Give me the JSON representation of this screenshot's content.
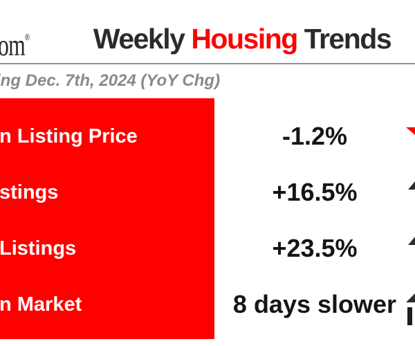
{
  "header": {
    "logo_visible": "om",
    "registered_mark": "®",
    "title_part1": "Weekly ",
    "title_part2": "Housing",
    "title_part3": " Trends"
  },
  "subtitle": "ing Dec. 7th, 2024 (YoY Chg)",
  "colors": {
    "accent_red": "#fe0000",
    "title_dark": "#2b2b2b",
    "subtitle_gray": "#8a8a8a",
    "value_black": "#151515",
    "label_white": "#ffffff",
    "divider_gray": "#8f8f8f",
    "arrow_up_dark": "#2e2e2e",
    "arrow_down_red": "#fe0000"
  },
  "chart_data": {
    "type": "table",
    "title": "Weekly Housing Trends",
    "subtitle": "ing Dec. 7th, 2024 (YoY Chg)",
    "columns": [
      "metric",
      "yoy_change",
      "trend_direction"
    ],
    "rows": [
      {
        "metric": "n Listing Price",
        "value": "-1.2%",
        "direction": "down"
      },
      {
        "metric": "stings",
        "value": "+16.5%",
        "direction": "up"
      },
      {
        "metric": "Listings",
        "value": "+23.5%",
        "direction": "up"
      },
      {
        "metric": "n Market",
        "value": "8 days slower",
        "direction": "up"
      }
    ]
  }
}
